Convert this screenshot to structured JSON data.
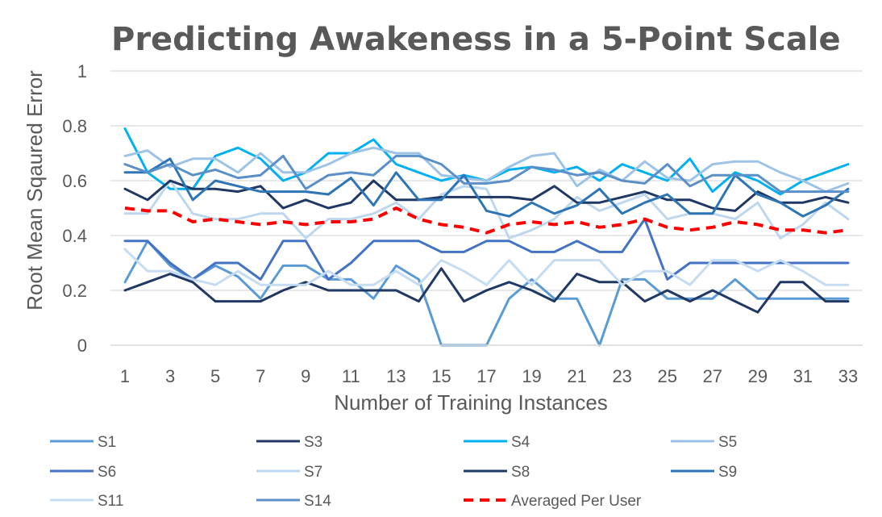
{
  "chart_data": {
    "type": "line",
    "title": "Predicting Awakeness in a 5-Point Scale",
    "xlabel": "Number of Training Instances",
    "ylabel": "Root Mean Sqaured Error",
    "ylim": [
      0,
      1
    ],
    "yticks": [
      "0",
      "0.2",
      "0.4",
      "0.6",
      "0.8",
      "1"
    ],
    "xticks": [
      "1",
      "3",
      "5",
      "7",
      "9",
      "11",
      "13",
      "15",
      "17",
      "19",
      "21",
      "23",
      "25",
      "27",
      "29",
      "31",
      "33"
    ],
    "x": [
      1,
      2,
      3,
      4,
      5,
      6,
      7,
      8,
      9,
      10,
      11,
      12,
      13,
      14,
      15,
      16,
      17,
      18,
      19,
      20,
      21,
      22,
      23,
      24,
      25,
      26,
      27,
      28,
      29,
      30,
      31,
      32,
      33
    ],
    "grid": "horizontal",
    "legend_position": "bottom",
    "series": [
      {
        "name": "S1",
        "color": "#5b9bd5",
        "dashed": false,
        "width": 3,
        "values": [
          0.23,
          0.38,
          0.29,
          0.24,
          0.29,
          0.25,
          0.17,
          0.29,
          0.29,
          0.24,
          0.24,
          0.17,
          0.29,
          0.24,
          0.0,
          0.0,
          0.0,
          0.17,
          0.24,
          0.17,
          0.17,
          0.0,
          0.24,
          0.24,
          0.17,
          0.17,
          0.17,
          0.24,
          0.17,
          0.17,
          0.17,
          0.17,
          0.17
        ]
      },
      {
        "name": "S3",
        "color": "#1f3864",
        "dashed": false,
        "width": 3,
        "values": [
          0.2,
          0.23,
          0.26,
          0.23,
          0.16,
          0.16,
          0.16,
          0.2,
          0.23,
          0.2,
          0.2,
          0.2,
          0.2,
          0.16,
          0.28,
          0.16,
          0.2,
          0.23,
          0.2,
          0.16,
          0.26,
          0.23,
          0.23,
          0.16,
          0.2,
          0.16,
          0.2,
          0.16,
          0.12,
          0.23,
          0.23,
          0.16,
          0.16
        ]
      },
      {
        "name": "S4",
        "color": "#00b0f0",
        "dashed": false,
        "width": 3,
        "values": [
          0.79,
          0.63,
          0.57,
          0.57,
          0.69,
          0.72,
          0.68,
          0.6,
          0.63,
          0.7,
          0.7,
          0.75,
          0.66,
          0.63,
          0.6,
          0.62,
          0.6,
          0.64,
          0.65,
          0.63,
          0.65,
          0.6,
          0.66,
          0.63,
          0.6,
          0.68,
          0.56,
          0.63,
          0.6,
          0.55,
          0.6,
          0.63,
          0.66
        ]
      },
      {
        "name": "S5",
        "color": "#9dc3e6",
        "dashed": false,
        "width": 3,
        "values": [
          0.69,
          0.71,
          0.65,
          0.68,
          0.68,
          0.63,
          0.7,
          0.63,
          0.63,
          0.66,
          0.7,
          0.72,
          0.7,
          0.7,
          0.62,
          0.61,
          0.6,
          0.65,
          0.69,
          0.7,
          0.58,
          0.64,
          0.6,
          0.67,
          0.61,
          0.6,
          0.66,
          0.67,
          0.67,
          0.63,
          0.6,
          0.56,
          0.59
        ]
      },
      {
        "name": "S6",
        "color": "#4472c4",
        "dashed": false,
        "width": 3,
        "values": [
          0.38,
          0.38,
          0.3,
          0.24,
          0.3,
          0.3,
          0.24,
          0.38,
          0.38,
          0.24,
          0.3,
          0.38,
          0.38,
          0.38,
          0.34,
          0.34,
          0.38,
          0.38,
          0.34,
          0.34,
          0.38,
          0.34,
          0.34,
          0.46,
          0.24,
          0.3,
          0.3,
          0.3,
          0.3,
          0.3,
          0.3,
          0.3,
          0.3
        ]
      },
      {
        "name": "S7",
        "color": "#bdd7ee",
        "dashed": false,
        "width": 3,
        "values": [
          0.48,
          0.48,
          0.6,
          0.48,
          0.46,
          0.46,
          0.48,
          0.48,
          0.39,
          0.46,
          0.46,
          0.48,
          0.52,
          0.46,
          0.55,
          0.58,
          0.57,
          0.39,
          0.42,
          0.46,
          0.54,
          0.49,
          0.52,
          0.55,
          0.46,
          0.48,
          0.48,
          0.46,
          0.52,
          0.39,
          0.44,
          0.52,
          0.46
        ]
      },
      {
        "name": "S8",
        "color": "#203864",
        "dashed": false,
        "width": 3,
        "values": [
          0.57,
          0.53,
          0.6,
          0.57,
          0.57,
          0.56,
          0.58,
          0.5,
          0.53,
          0.5,
          0.52,
          0.6,
          0.53,
          0.53,
          0.54,
          0.54,
          0.54,
          0.54,
          0.53,
          0.58,
          0.52,
          0.52,
          0.54,
          0.56,
          0.53,
          0.53,
          0.5,
          0.49,
          0.56,
          0.52,
          0.52,
          0.54,
          0.52
        ]
      },
      {
        "name": "S9",
        "color": "#2e75b6",
        "dashed": false,
        "width": 3,
        "values": [
          0.63,
          0.63,
          0.68,
          0.53,
          0.6,
          0.58,
          0.56,
          0.56,
          0.56,
          0.55,
          0.61,
          0.51,
          0.63,
          0.53,
          0.53,
          0.62,
          0.49,
          0.47,
          0.52,
          0.48,
          0.51,
          0.57,
          0.48,
          0.52,
          0.55,
          0.48,
          0.48,
          0.62,
          0.55,
          0.52,
          0.47,
          0.51,
          0.57
        ]
      },
      {
        "name": "S11",
        "color": "#c5dcf1",
        "dashed": false,
        "width": 3,
        "values": [
          0.35,
          0.27,
          0.27,
          0.24,
          0.22,
          0.27,
          0.22,
          0.22,
          0.22,
          0.27,
          0.22,
          0.22,
          0.27,
          0.22,
          0.31,
          0.27,
          0.22,
          0.31,
          0.22,
          0.31,
          0.31,
          0.31,
          0.22,
          0.27,
          0.27,
          0.22,
          0.31,
          0.31,
          0.27,
          0.31,
          0.27,
          0.22,
          0.22
        ]
      },
      {
        "name": "S14",
        "color": "#5b8fc8",
        "dashed": false,
        "width": 3,
        "values": [
          0.66,
          0.63,
          0.66,
          0.62,
          0.64,
          0.61,
          0.62,
          0.69,
          0.57,
          0.62,
          0.63,
          0.62,
          0.69,
          0.69,
          0.66,
          0.59,
          0.59,
          0.6,
          0.65,
          0.64,
          0.62,
          0.63,
          0.6,
          0.59,
          0.66,
          0.58,
          0.62,
          0.62,
          0.62,
          0.56,
          0.56,
          0.56,
          0.56
        ]
      },
      {
        "name": "Averaged Per User",
        "color": "#ff0000",
        "dashed": true,
        "width": 4,
        "values": [
          0.5,
          0.49,
          0.49,
          0.45,
          0.46,
          0.45,
          0.44,
          0.45,
          0.44,
          0.45,
          0.45,
          0.46,
          0.5,
          0.46,
          0.44,
          0.43,
          0.41,
          0.44,
          0.45,
          0.44,
          0.45,
          0.43,
          0.44,
          0.46,
          0.43,
          0.42,
          0.43,
          0.45,
          0.44,
          0.42,
          0.42,
          0.41,
          0.42
        ]
      }
    ]
  }
}
